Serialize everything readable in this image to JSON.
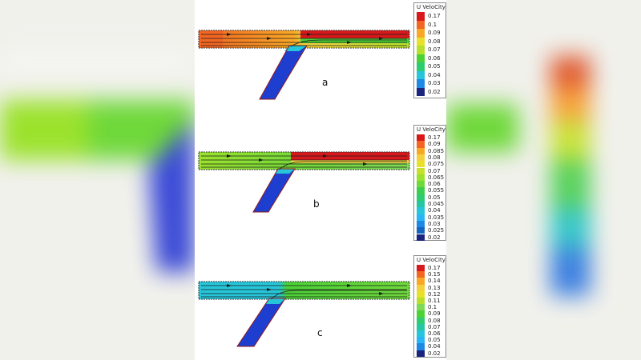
{
  "panels": [
    {
      "letter": "a",
      "legend_title": "U VeloCity",
      "legend_items": [
        {
          "label": "0.17",
          "color": "#d7191c"
        },
        {
          "label": "0.1",
          "color": "#f26522"
        },
        {
          "label": "0.09",
          "color": "#f9a825"
        },
        {
          "label": "0.08",
          "color": "#e8e12a"
        },
        {
          "label": "0.07",
          "color": "#b7e02c"
        },
        {
          "label": "0.06",
          "color": "#4cd137"
        },
        {
          "label": "0.05",
          "color": "#2ecc71"
        },
        {
          "label": "0.04",
          "color": "#26c6da"
        },
        {
          "label": "0.03",
          "color": "#1e88e5"
        },
        {
          "label": "0.02",
          "color": "#1a237e"
        }
      ]
    },
    {
      "letter": "b",
      "legend_title": "U VeloCity",
      "legend_items": [
        {
          "label": "0.17",
          "color": "#d7191c"
        },
        {
          "label": "0.09",
          "color": "#f26522"
        },
        {
          "label": "0.085",
          "color": "#f9a825"
        },
        {
          "label": "0.08",
          "color": "#f4d03f"
        },
        {
          "label": "0.075",
          "color": "#e8e12a"
        },
        {
          "label": "0.07",
          "color": "#c6e02c"
        },
        {
          "label": "0.065",
          "color": "#9be22d"
        },
        {
          "label": "0.06",
          "color": "#6fd83a"
        },
        {
          "label": "0.055",
          "color": "#3ccf4e"
        },
        {
          "label": "0.05",
          "color": "#2ecc71"
        },
        {
          "label": "0.045",
          "color": "#26c6a0"
        },
        {
          "label": "0.04",
          "color": "#26c6da"
        },
        {
          "label": "0.035",
          "color": "#29b6f6"
        },
        {
          "label": "0.03",
          "color": "#1e88e5"
        },
        {
          "label": "0.025",
          "color": "#1565c0"
        },
        {
          "label": "0.02",
          "color": "#1a237e"
        }
      ]
    },
    {
      "letter": "c",
      "legend_title": "U VeloCity",
      "legend_items": [
        {
          "label": "0.17",
          "color": "#d7191c"
        },
        {
          "label": "0.15",
          "color": "#f26522"
        },
        {
          "label": "0.14",
          "color": "#f9a825"
        },
        {
          "label": "0.13",
          "color": "#f4d03f"
        },
        {
          "label": "0.12",
          "color": "#e8e12a"
        },
        {
          "label": "0.11",
          "color": "#b7e02c"
        },
        {
          "label": "0.1",
          "color": "#7ed957"
        },
        {
          "label": "0.09",
          "color": "#4cd137"
        },
        {
          "label": "0.08",
          "color": "#2ecc71"
        },
        {
          "label": "0.07",
          "color": "#26c6a0"
        },
        {
          "label": "0.06",
          "color": "#26c6da"
        },
        {
          "label": "0.05",
          "color": "#29b6f6"
        },
        {
          "label": "0.04",
          "color": "#1e88e5"
        },
        {
          "label": "0.02",
          "color": "#1a237e"
        }
      ]
    }
  ],
  "colors": {
    "red": "#d7191c",
    "orange": "#f4722b",
    "yellow_green": "#9be22d",
    "green": "#4cd137",
    "cyan": "#26c6da",
    "blue": "#1e3ecf",
    "streamline": "#1b1b1b"
  }
}
